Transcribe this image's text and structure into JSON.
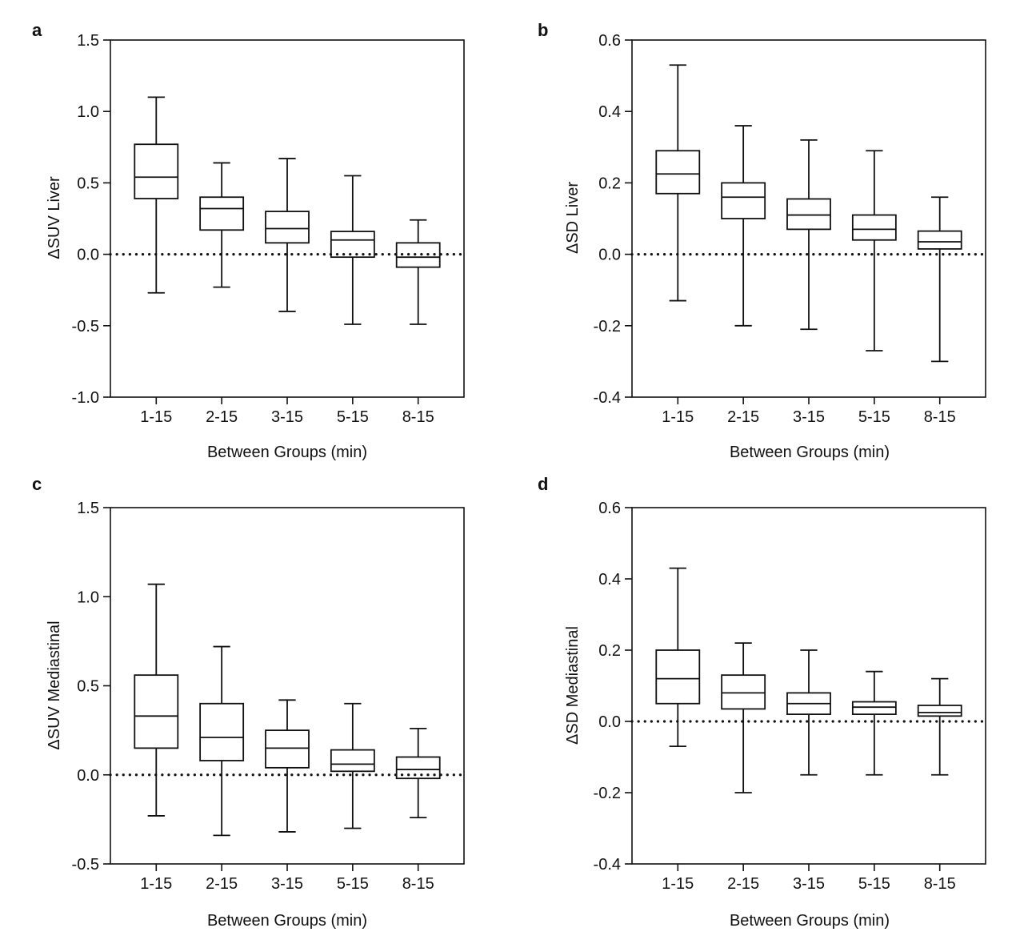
{
  "colors": {
    "ink": "#111111",
    "background": "#ffffff"
  },
  "chart_data": [
    {
      "panel": "a",
      "type": "box",
      "xlabel": "Between Groups (min)",
      "ylabel": "ΔSUV Liver",
      "ylim": [
        -1.0,
        1.5
      ],
      "yticks": [
        -1.0,
        -0.5,
        0.0,
        0.5,
        1.0,
        1.5
      ],
      "ytick_labels": [
        "-1.0",
        "-0.5",
        "0.0",
        "0.5",
        "1.0",
        "1.5"
      ],
      "reference_line": 0.0,
      "categories": [
        "1-15",
        "2-15",
        "3-15",
        "5-15",
        "8-15"
      ],
      "boxes": [
        {
          "min": -0.27,
          "q1": 0.39,
          "median": 0.54,
          "q3": 0.77,
          "max": 1.1
        },
        {
          "min": -0.23,
          "q1": 0.17,
          "median": 0.32,
          "q3": 0.4,
          "max": 0.64
        },
        {
          "min": -0.4,
          "q1": 0.08,
          "median": 0.18,
          "q3": 0.3,
          "max": 0.67
        },
        {
          "min": -0.49,
          "q1": -0.02,
          "median": 0.1,
          "q3": 0.16,
          "max": 0.55
        },
        {
          "min": -0.49,
          "q1": -0.09,
          "median": -0.02,
          "q3": 0.08,
          "max": 0.24
        }
      ]
    },
    {
      "panel": "b",
      "type": "box",
      "xlabel": "Between Groups (min)",
      "ylabel": "ΔSD Liver",
      "ylim": [
        -0.4,
        0.6
      ],
      "yticks": [
        -0.4,
        -0.2,
        0.0,
        0.2,
        0.4,
        0.6
      ],
      "ytick_labels": [
        "-0.4",
        "-0.2",
        "0.0",
        "0.2",
        "0.4",
        "0.6"
      ],
      "reference_line": 0.0,
      "categories": [
        "1-15",
        "2-15",
        "3-15",
        "5-15",
        "8-15"
      ],
      "boxes": [
        {
          "min": -0.13,
          "q1": 0.17,
          "median": 0.225,
          "q3": 0.29,
          "max": 0.53
        },
        {
          "min": -0.2,
          "q1": 0.1,
          "median": 0.16,
          "q3": 0.2,
          "max": 0.36
        },
        {
          "min": -0.21,
          "q1": 0.07,
          "median": 0.11,
          "q3": 0.155,
          "max": 0.32
        },
        {
          "min": -0.27,
          "q1": 0.04,
          "median": 0.07,
          "q3": 0.11,
          "max": 0.29
        },
        {
          "min": -0.3,
          "q1": 0.015,
          "median": 0.035,
          "q3": 0.065,
          "max": 0.16
        }
      ]
    },
    {
      "panel": "c",
      "type": "box",
      "xlabel": "Between Groups (min)",
      "ylabel": "ΔSUV Mediastinal",
      "ylim": [
        -0.5,
        1.5
      ],
      "yticks": [
        -0.5,
        0.0,
        0.5,
        1.0,
        1.5
      ],
      "ytick_labels": [
        "-0.5",
        "0.0",
        "0.5",
        "1.0",
        "1.5"
      ],
      "reference_line": 0.0,
      "categories": [
        "1-15",
        "2-15",
        "3-15",
        "5-15",
        "8-15"
      ],
      "boxes": [
        {
          "min": -0.23,
          "q1": 0.15,
          "median": 0.33,
          "q3": 0.56,
          "max": 1.07
        },
        {
          "min": -0.34,
          "q1": 0.08,
          "median": 0.21,
          "q3": 0.4,
          "max": 0.72
        },
        {
          "min": -0.32,
          "q1": 0.04,
          "median": 0.15,
          "q3": 0.25,
          "max": 0.42
        },
        {
          "min": -0.3,
          "q1": 0.02,
          "median": 0.06,
          "q3": 0.14,
          "max": 0.4
        },
        {
          "min": -0.24,
          "q1": -0.02,
          "median": 0.03,
          "q3": 0.1,
          "max": 0.26
        }
      ]
    },
    {
      "panel": "d",
      "type": "box",
      "xlabel": "Between Groups (min)",
      "ylabel": "ΔSD Mediastinal",
      "ylim": [
        -0.4,
        0.6
      ],
      "yticks": [
        -0.4,
        -0.2,
        0.0,
        0.2,
        0.4,
        0.6
      ],
      "ytick_labels": [
        "-0.4",
        "-0.2",
        "0.0",
        "0.2",
        "0.4",
        "0.6"
      ],
      "reference_line": 0.0,
      "categories": [
        "1-15",
        "2-15",
        "3-15",
        "5-15",
        "8-15"
      ],
      "boxes": [
        {
          "min": -0.07,
          "q1": 0.05,
          "median": 0.12,
          "q3": 0.2,
          "max": 0.43
        },
        {
          "min": -0.2,
          "q1": 0.035,
          "median": 0.08,
          "q3": 0.13,
          "max": 0.22
        },
        {
          "min": -0.15,
          "q1": 0.02,
          "median": 0.05,
          "q3": 0.08,
          "max": 0.2
        },
        {
          "min": -0.15,
          "q1": 0.02,
          "median": 0.04,
          "q3": 0.055,
          "max": 0.14
        },
        {
          "min": -0.15,
          "q1": 0.015,
          "median": 0.025,
          "q3": 0.045,
          "max": 0.12
        }
      ]
    }
  ]
}
